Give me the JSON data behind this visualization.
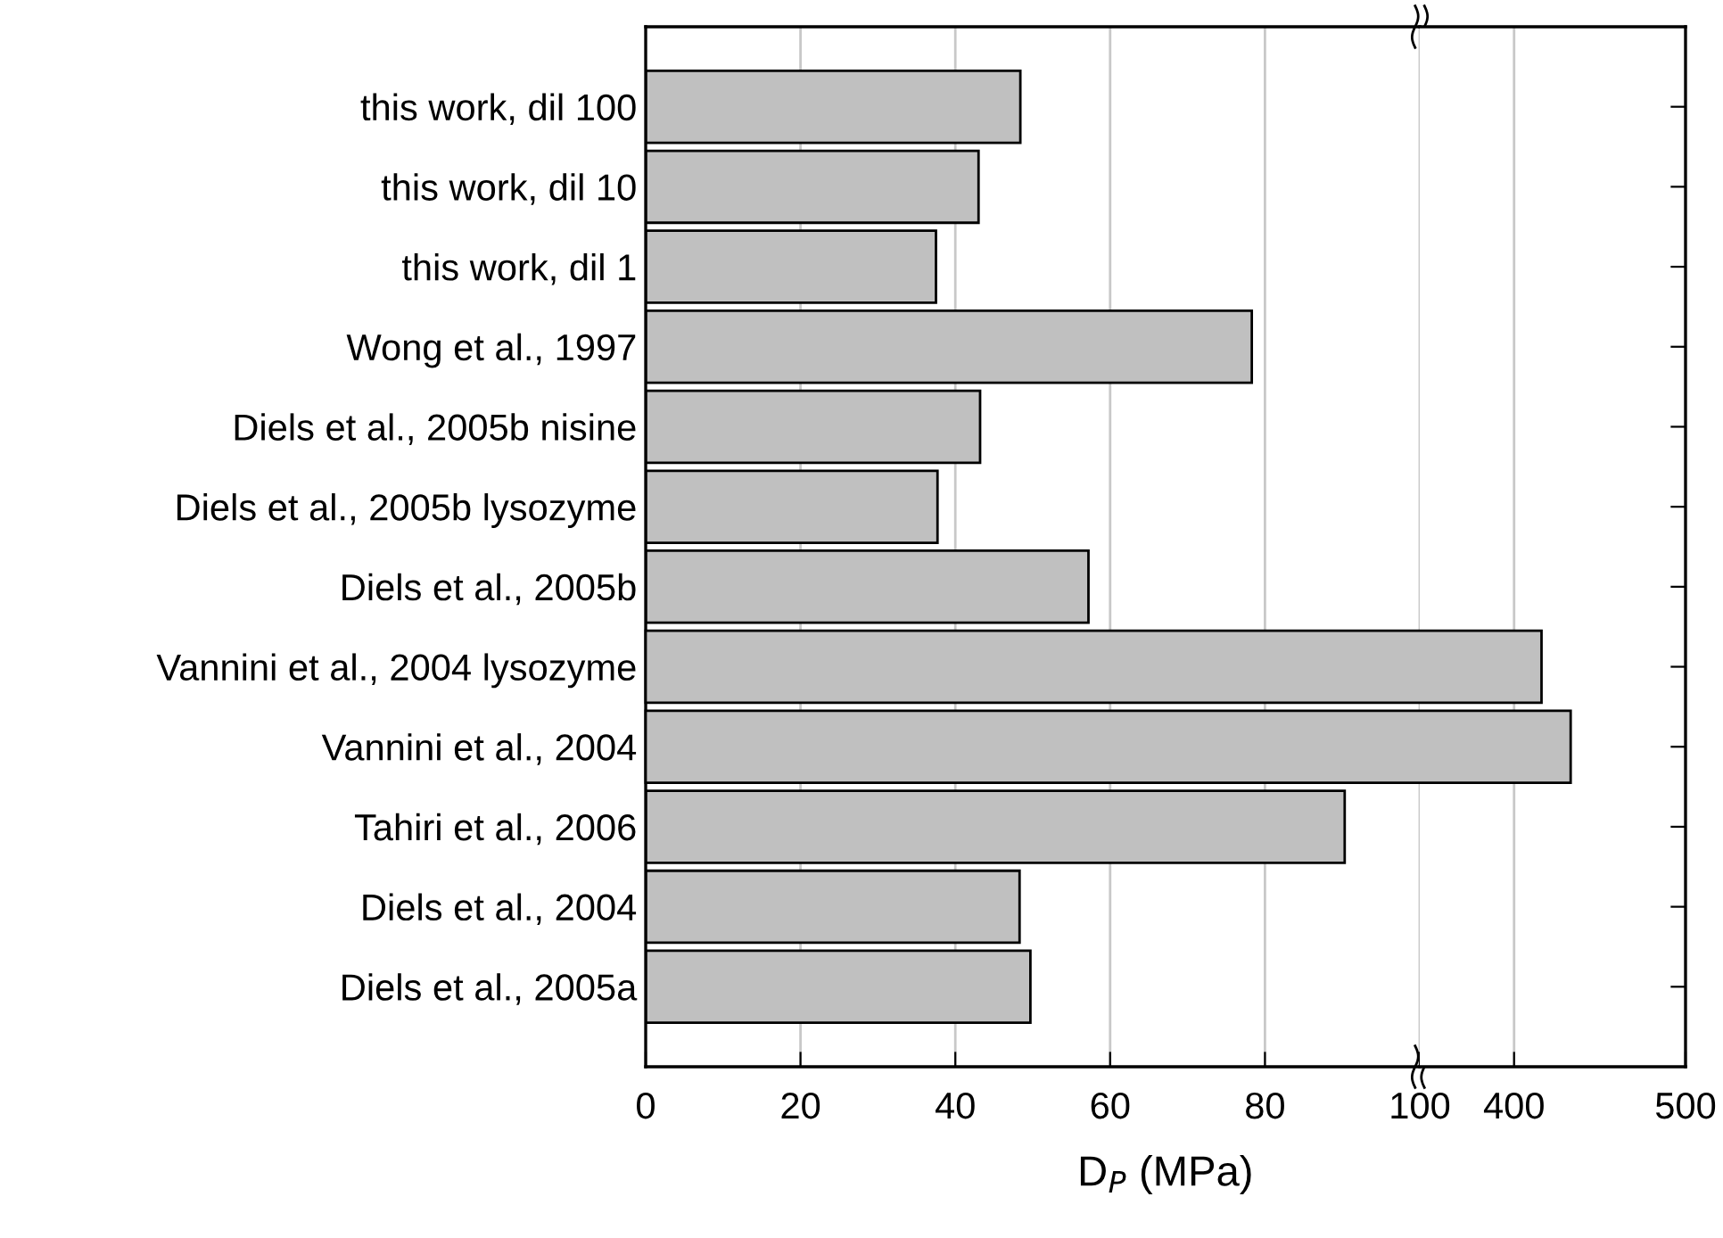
{
  "chart_data": [
    {
      "type": "bar",
      "orientation": "horizontal",
      "xlabel": "D$_{P}$ (MPa)",
      "categories": [
        "this work, dil 100",
        "this work, dil 10",
        "this work, dil 1",
        "Wong et al., 1997",
        "Diels et al., 2005b nisine",
        "Diels et al., 2005b lysozyme",
        "Diels et al., 2005b",
        "Vannini et al., 2004 lysozyme",
        "Vannini et al., 2004",
        "Tahiri et al., 2006",
        "Diels et al., 2004",
        "Diels et al., 2005a"
      ],
      "values": [
        48.4,
        43.0,
        37.5,
        78.3,
        43.2,
        37.7,
        57.2,
        null,
        null,
        90.3,
        48.3,
        49.7
      ],
      "color": "#c0c0c0",
      "xlim": [
        0,
        100
      ],
      "xticks": [
        0,
        20,
        40,
        60,
        80,
        100
      ],
      "grid": "x"
    },
    {
      "type": "bar",
      "orientation": "horizontal",
      "categories": [
        null,
        null,
        null,
        null,
        null,
        null,
        null,
        null,
        null,
        null,
        null,
        null
      ],
      "values": [
        null,
        null,
        null,
        null,
        null,
        null,
        null,
        416,
        433,
        null,
        null,
        null
      ],
      "color": "#c0c0c0",
      "xlim": [
        345,
        500
      ],
      "xticks": [
        400,
        500
      ],
      "grid": "x",
      "tick_labels": "x"
    }
  ]
}
